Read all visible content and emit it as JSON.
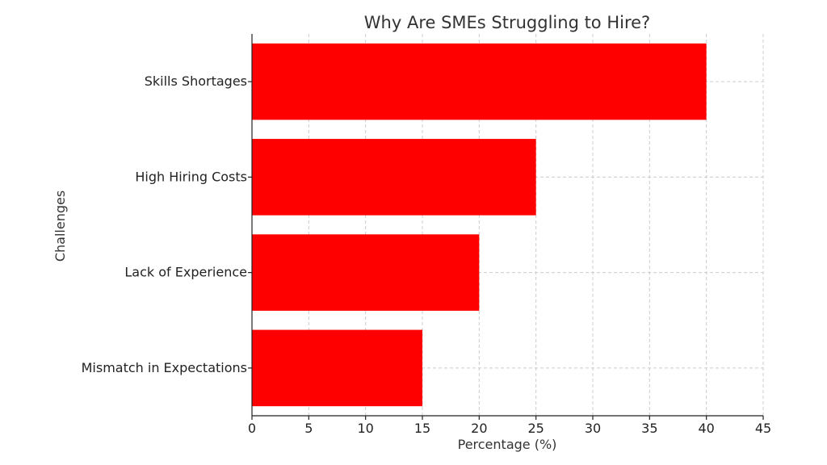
{
  "chart_data": {
    "type": "bar",
    "orientation": "horizontal",
    "title": "Why Are SMEs Struggling to Hire?",
    "xlabel": "Percentage (%)",
    "ylabel": "Challenges",
    "categories": [
      "Skills Shortages",
      "High Hiring Costs",
      "Lack of Experience",
      "Mismatch in Expectations"
    ],
    "values": [
      40,
      25,
      20,
      15
    ],
    "xlim": [
      0,
      45
    ],
    "xticks": [
      0,
      5,
      10,
      15,
      20,
      25,
      30,
      35,
      40,
      45
    ],
    "bar_color": "#ff0000",
    "grid": true,
    "legend": "none"
  }
}
